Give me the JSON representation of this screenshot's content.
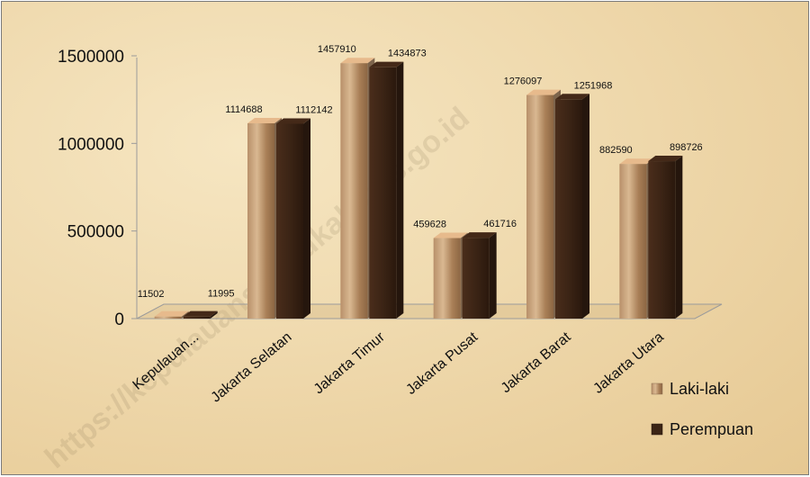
{
  "chart_data": {
    "type": "bar",
    "categories": [
      "Kepulauan...",
      "Jakarta Selatan",
      "Jakarta Timur",
      "Jakarta Pusat",
      "Jakarta Barat",
      "Jakarta Utara"
    ],
    "series": [
      {
        "name": "Laki-laki",
        "values": [
          11502,
          1114688,
          1457910,
          459628,
          1276097,
          882590
        ],
        "color": "#c9a27a"
      },
      {
        "name": "Perempuan",
        "values": [
          11995,
          1112142,
          1434873,
          461716,
          1251968,
          898726
        ],
        "color": "#3b2415"
      }
    ],
    "y_ticks": [
      "0",
      "500000",
      "1000000",
      "1500000"
    ],
    "ylim": [
      0,
      1500000
    ],
    "legend_position": "bottom-right",
    "style": "3d-column",
    "watermark": "https://kepulauanseribukab.bps.go.id"
  }
}
